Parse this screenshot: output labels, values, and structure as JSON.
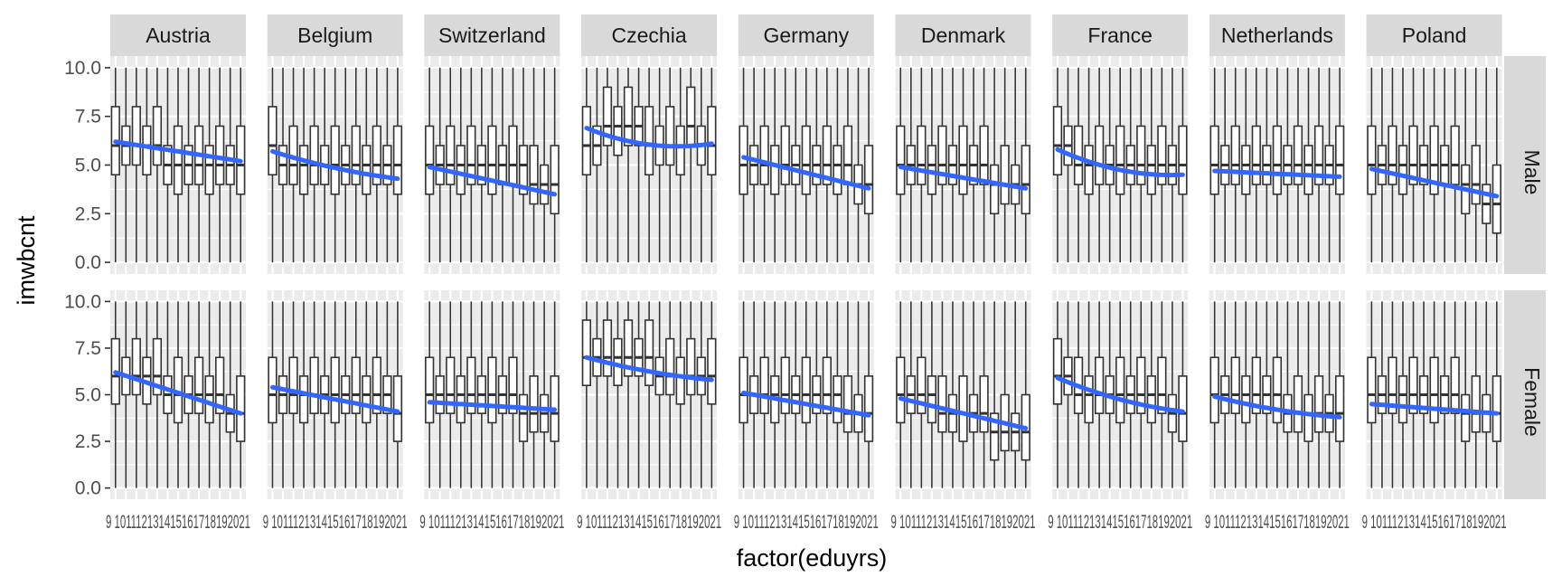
{
  "chart_data": {
    "type": "boxplot",
    "xlabel": "factor(eduyrs)",
    "ylabel": "imwbcnt",
    "ylim": [
      -0.6,
      10.6
    ],
    "yticks": [
      0.0,
      2.5,
      5.0,
      7.5,
      10.0
    ],
    "ytick_labels": [
      "0.0",
      "2.5",
      "5.0",
      "7.5",
      "10.0"
    ],
    "categories": [
      "9",
      "10",
      "11",
      "12",
      "13",
      "14",
      "15",
      "16",
      "17",
      "18",
      "19",
      "20",
      "21"
    ],
    "x_tick_label_text": "9 101112131415161718192021",
    "countries": [
      "Austria",
      "Belgium",
      "Switzerland",
      "Czechia",
      "Germany",
      "Denmark",
      "France",
      "Netherlands",
      "Poland"
    ],
    "sexes": [
      "Male",
      "Female"
    ],
    "smooth_color": "#3366FF",
    "panel_bg": "#EBEBEB",
    "strip_bg": "#D9D9D9",
    "trend_lines": {
      "Male": [
        [
          6.2,
          5.2
        ],
        [
          5.7,
          4.3
        ],
        [
          4.9,
          3.5
        ],
        [
          6.9,
          6.1
        ],
        [
          5.4,
          3.8
        ],
        [
          4.9,
          3.8
        ],
        [
          5.8,
          4.5
        ],
        [
          4.7,
          4.4
        ],
        [
          4.8,
          3.4
        ]
      ],
      "Female": [
        [
          6.2,
          4.0
        ],
        [
          5.4,
          4.1
        ],
        [
          4.6,
          4.2
        ],
        [
          7.0,
          5.8
        ],
        [
          5.1,
          3.9
        ],
        [
          4.8,
          3.2
        ],
        [
          5.9,
          4.1
        ],
        [
          4.9,
          3.8
        ],
        [
          4.5,
          4.0
        ]
      ]
    },
    "trend_curvature": {
      "Male": [
        0.0,
        0.3,
        0.0,
        0.9,
        0.0,
        0.0,
        0.8,
        0.0,
        0.0
      ],
      "Female": [
        0.0,
        0.0,
        0.0,
        0.3,
        0.0,
        0.0,
        0.5,
        0.3,
        0.0
      ]
    },
    "box_medians": {
      "Male": [
        [
          6,
          6,
          6,
          6,
          6,
          5,
          5,
          5,
          5,
          5,
          5,
          5,
          5
        ],
        [
          6,
          5,
          5,
          5,
          5,
          5,
          5,
          5,
          5,
          5,
          5,
          5,
          5
        ],
        [
          5,
          5,
          5,
          5,
          5,
          5,
          5,
          5,
          5,
          5,
          4,
          4,
          4
        ],
        [
          6,
          6,
          7,
          7,
          7,
          7,
          6,
          6,
          6,
          6,
          7,
          6,
          6
        ],
        [
          5,
          5,
          5,
          5,
          5,
          5,
          5,
          5,
          5,
          5,
          5,
          4,
          4
        ],
        [
          5,
          5,
          5,
          5,
          5,
          5,
          5,
          5,
          5,
          4,
          4,
          4,
          4
        ],
        [
          6,
          6,
          5,
          5,
          5,
          5,
          5,
          5,
          5,
          5,
          5,
          5,
          5
        ],
        [
          5,
          5,
          5,
          5,
          5,
          5,
          5,
          5,
          5,
          5,
          5,
          5,
          5
        ],
        [
          5,
          5,
          5,
          5,
          5,
          5,
          5,
          5,
          5,
          4,
          4,
          3,
          3
        ]
      ],
      "Female": [
        [
          6,
          6,
          6,
          6,
          6,
          5,
          5,
          5,
          5,
          5,
          5,
          4,
          4
        ],
        [
          5,
          5,
          5,
          5,
          5,
          5,
          5,
          5,
          5,
          5,
          5,
          5,
          4
        ],
        [
          5,
          5,
          5,
          5,
          5,
          5,
          5,
          5,
          5,
          4,
          4,
          4,
          4
        ],
        [
          7,
          7,
          7,
          7,
          7,
          7,
          7,
          6,
          6,
          6,
          6,
          6,
          6
        ],
        [
          5,
          5,
          5,
          5,
          5,
          5,
          5,
          5,
          5,
          5,
          4,
          4,
          4
        ],
        [
          5,
          5,
          5,
          5,
          4,
          4,
          4,
          4,
          4,
          3,
          3,
          3,
          3
        ],
        [
          6,
          6,
          5,
          5,
          5,
          5,
          5,
          5,
          5,
          5,
          5,
          4,
          4
        ],
        [
          5,
          5,
          5,
          5,
          5,
          5,
          5,
          4,
          4,
          4,
          4,
          4,
          4
        ],
        [
          5,
          5,
          5,
          5,
          5,
          5,
          5,
          5,
          5,
          4,
          4,
          4,
          4
        ]
      ]
    }
  }
}
